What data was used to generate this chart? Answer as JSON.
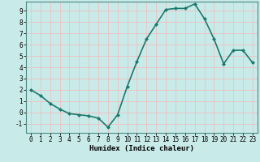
{
  "x": [
    0,
    1,
    2,
    3,
    4,
    5,
    6,
    7,
    8,
    9,
    10,
    11,
    12,
    13,
    14,
    15,
    16,
    17,
    18,
    19,
    20,
    21,
    22,
    23
  ],
  "y": [
    2.0,
    1.5,
    0.8,
    0.3,
    -0.1,
    -0.2,
    -0.3,
    -0.5,
    -1.3,
    -0.2,
    2.3,
    4.5,
    6.5,
    7.8,
    9.1,
    9.2,
    9.2,
    9.6,
    8.3,
    6.5,
    4.3,
    5.5,
    5.5,
    4.4
  ],
  "line_color": "#1a7a6e",
  "marker": "D",
  "marker_size": 2.0,
  "bg_color": "#c8eae8",
  "grid_major_color": "#f0c0c0",
  "grid_minor_color": "#d8eceb",
  "tick_label_color": "#000000",
  "xlabel": "Humidex (Indice chaleur)",
  "ylim": [
    -1.8,
    9.8
  ],
  "xlim": [
    -0.5,
    23.5
  ],
  "yticks": [
    -1,
    0,
    1,
    2,
    3,
    4,
    5,
    6,
    7,
    8,
    9
  ],
  "xticks": [
    0,
    1,
    2,
    3,
    4,
    5,
    6,
    7,
    8,
    9,
    10,
    11,
    12,
    13,
    14,
    15,
    16,
    17,
    18,
    19,
    20,
    21,
    22,
    23
  ],
  "linewidth": 1.2
}
